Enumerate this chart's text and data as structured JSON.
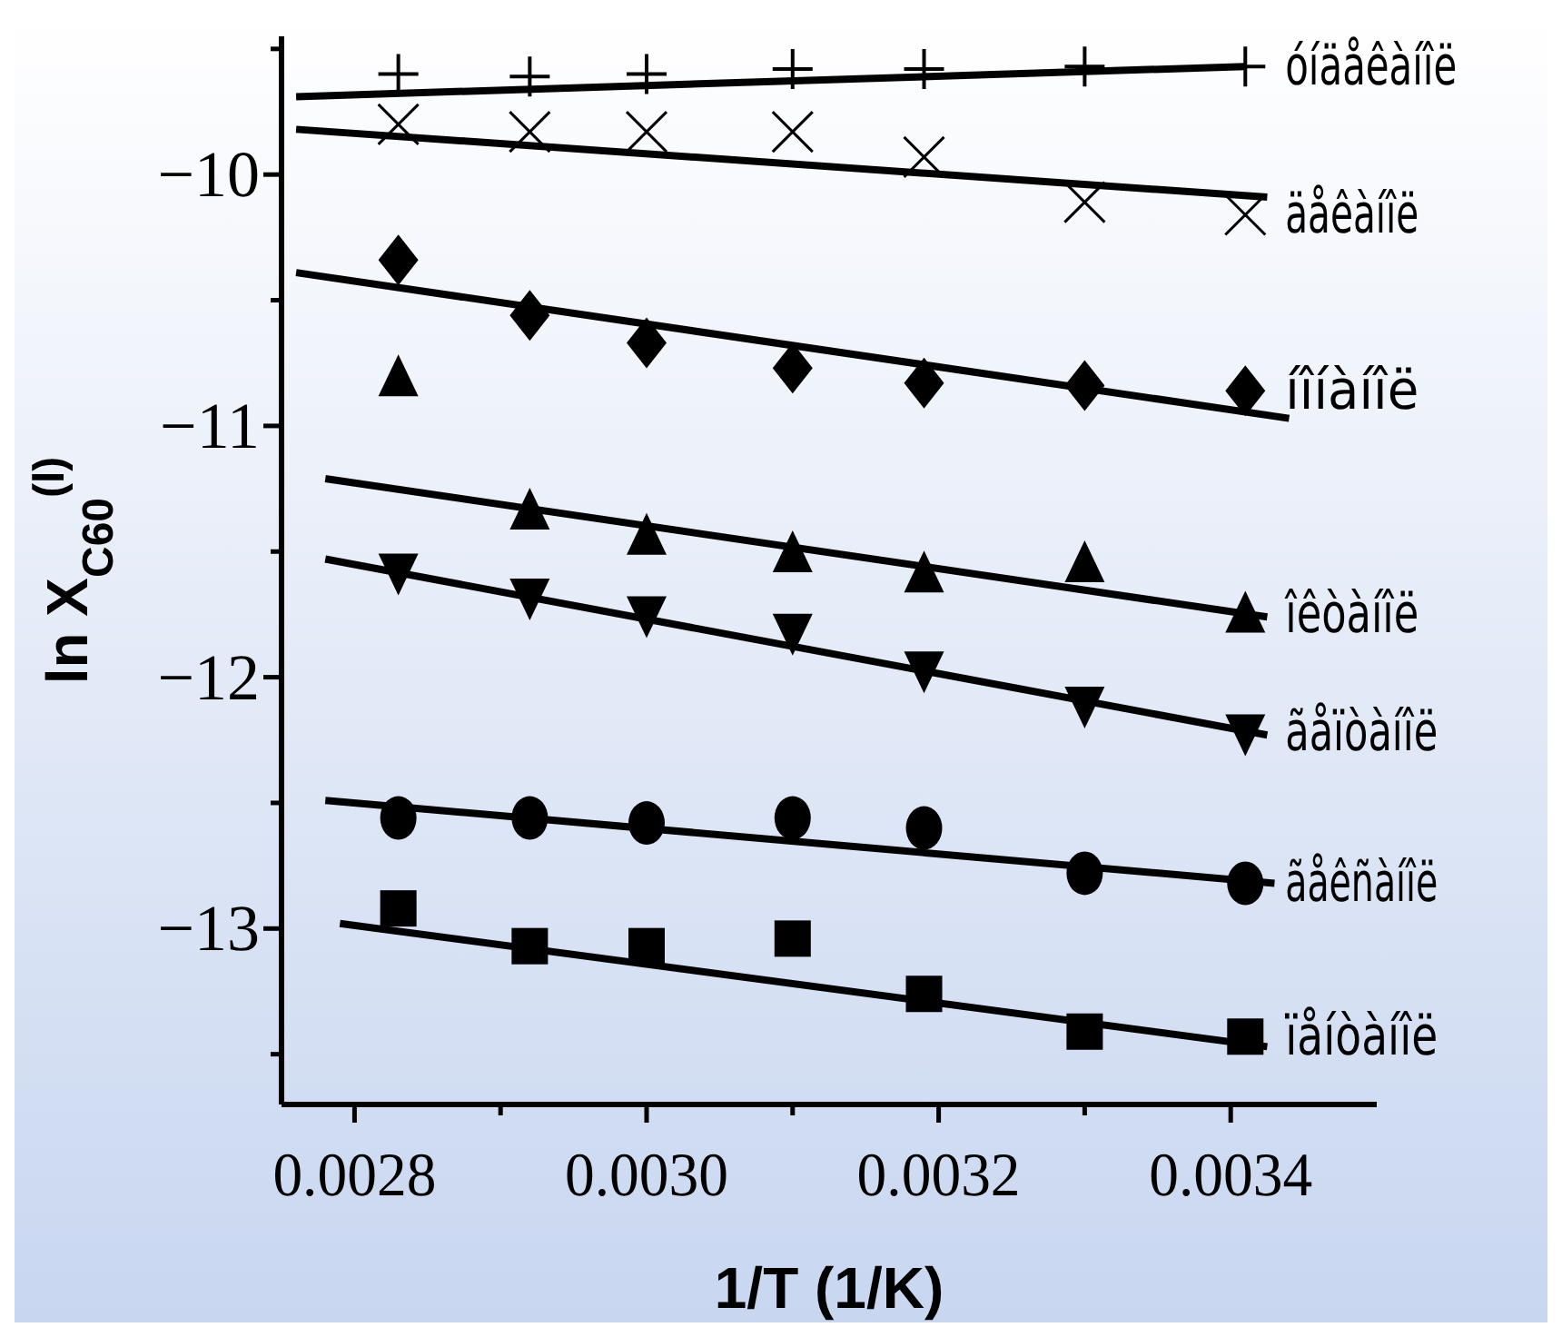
{
  "chart_data": {
    "type": "scatter",
    "xlabel": "1/T (1/K)",
    "ylabel": "ln X$_{C60}$$^{(l)}$",
    "xlim": [
      0.00275,
      0.0035
    ],
    "xticks": [
      0.0028,
      {
        "value": 0.0029,
        "label": null
      },
      "0.0030",
      {
        "value": 0.0031,
        "label": null
      },
      0.0032,
      {
        "value": 0.0033,
        "label": null
      },
      0.0034
    ],
    "ylim": [
      -13.7,
      -9.45
    ],
    "yticks": [
      {
        "value": -9.5,
        "label": null
      },
      -10,
      {
        "value": -10.5,
        "label": null
      },
      -11,
      {
        "value": -11.5,
        "label": null
      },
      -12,
      {
        "value": -12.5,
        "label": null
      },
      -13,
      {
        "value": -13.5,
        "label": null
      }
    ],
    "x": [
      0.00283,
      0.00292,
      0.003,
      0.0031,
      0.00319,
      0.0033,
      0.00341
    ],
    "series": [
      {
        "name": "óíäåêàíîë",
        "color": "#000000",
        "marker": "cross",
        "values": [
          -9.6,
          -9.61,
          -9.6,
          -9.58,
          -9.58,
          -9.57,
          -9.57
        ]
      },
      {
        "name": "äåêàíîë",
        "color": "#000000",
        "marker": "x",
        "values": [
          -9.8,
          -9.83,
          -9.83,
          -9.83,
          -9.93,
          -10.11,
          -10.16
        ]
      },
      {
        "name": "íîíàíîë",
        "color": "#000000",
        "marker": "diamond",
        "values": [
          -10.34,
          -10.56,
          -10.67,
          -10.77,
          -10.83,
          -10.84,
          -10.86
        ]
      },
      {
        "name": "îêòàíîë",
        "color": "#000000",
        "marker": "triangle",
        "values": [
          -10.81,
          -11.34,
          -11.44,
          -11.51,
          -11.59,
          -11.55,
          -11.75
        ]
      },
      {
        "name": "ãåïòàíîë",
        "color": "#000000",
        "marker": "triangle-down",
        "values": [
          -11.58,
          -11.68,
          -11.75,
          -11.82,
          -11.97,
          -12.11,
          -12.22
        ]
      },
      {
        "name": "ãåêñàíîë",
        "color": "#000000",
        "marker": "circle",
        "values": [
          -12.56,
          -12.56,
          -12.58,
          -12.56,
          -12.6,
          -12.78,
          -12.82
        ]
      },
      {
        "name": "ïåíòàíîë",
        "color": "#000000",
        "marker": "square",
        "values": [
          -12.92,
          -13.07,
          -13.07,
          -13.04,
          -13.26,
          -13.41,
          -13.43
        ]
      },
      {
        "type": "line",
        "color": "#000000",
        "x": [
          0.00276,
          0.00341
        ],
        "values": [
          -9.69,
          -9.57
        ]
      },
      {
        "type": "line",
        "color": "#000000",
        "x": [
          0.00276,
          0.003425
        ],
        "values": [
          -9.82,
          -10.09
        ]
      },
      {
        "type": "line",
        "color": "#000000",
        "x": [
          0.00276,
          0.00344
        ],
        "values": [
          -10.39,
          -10.97
        ]
      },
      {
        "type": "line",
        "color": "#000000",
        "x": [
          0.00278,
          0.003425
        ],
        "values": [
          -11.21,
          -11.76
        ]
      },
      {
        "type": "line",
        "color": "#000000",
        "x": [
          0.00278,
          0.003425
        ],
        "values": [
          -11.53,
          -12.23
        ]
      },
      {
        "type": "line",
        "color": "#000000",
        "x": [
          0.00278,
          0.00343
        ],
        "values": [
          -12.49,
          -12.82
        ]
      },
      {
        "type": "line",
        "color": "#000000",
        "x": [
          0.00279,
          0.003425
        ],
        "values": [
          -12.98,
          -13.47
        ]
      }
    ]
  }
}
